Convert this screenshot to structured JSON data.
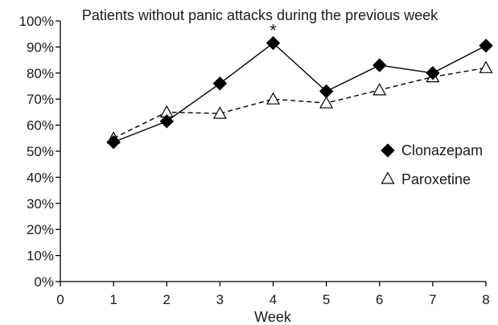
{
  "chart_data": {
    "type": "line",
    "title": "Patients without panic attacks during the previous week",
    "xlabel": "Week",
    "ylabel": "",
    "xlim": [
      0,
      8
    ],
    "ylim": [
      0,
      100
    ],
    "x_ticks": [
      "0",
      "1",
      "2",
      "3",
      "4",
      "5",
      "6",
      "7",
      "8"
    ],
    "y_ticks": [
      "0%",
      "10%",
      "20%",
      "30%",
      "40%",
      "50%",
      "60%",
      "70%",
      "80%",
      "90%",
      "100%"
    ],
    "grid": false,
    "legend_position": "right",
    "annotations": [
      {
        "text": "*",
        "x": 4
      }
    ],
    "x": [
      1,
      2,
      3,
      4,
      5,
      6,
      7,
      8
    ],
    "series": [
      {
        "name": "Clonazepam",
        "marker": "filled-diamond",
        "line": "solid",
        "color": "#000000",
        "values": [
          53.5,
          61.5,
          76,
          91.5,
          73,
          83,
          80,
          90.5
        ]
      },
      {
        "name": "Paroxetine",
        "marker": "open-triangle",
        "line": "dashed",
        "color": "#000000",
        "values": [
          55,
          65,
          64.5,
          70,
          68.5,
          73.5,
          78.5,
          82
        ]
      }
    ]
  }
}
